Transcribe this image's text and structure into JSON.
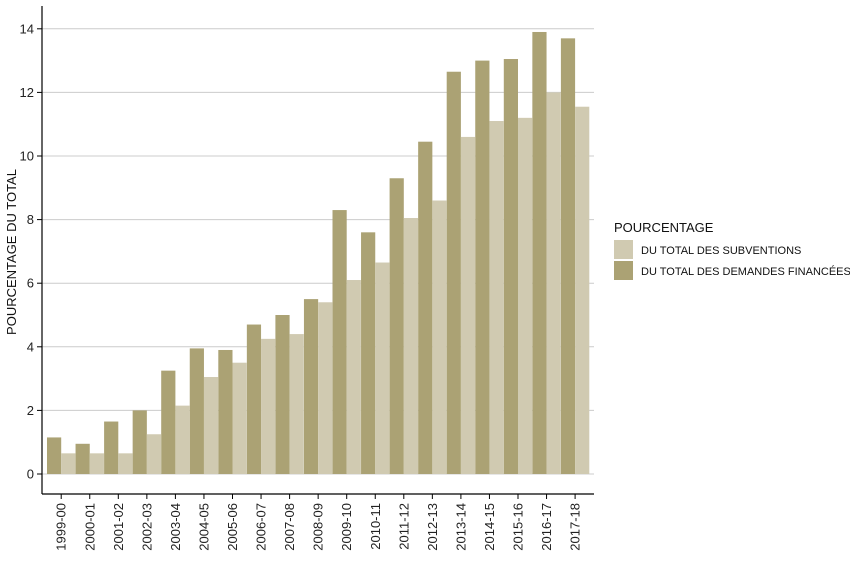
{
  "chart_data": {
    "type": "bar",
    "ylabel": "POURCENTAGE DU TOTAL",
    "xlabel": "",
    "ylim": [
      0,
      14.5
    ],
    "yticks": [
      0,
      2,
      4,
      6,
      8,
      10,
      12,
      14
    ],
    "grid": "horizontal",
    "legend": {
      "title": "POURCENTAGE",
      "placement": "right"
    },
    "categories": [
      "1999-00",
      "2000-01",
      "2001-02",
      "2002-03",
      "2003-04",
      "2004-05",
      "2005-06",
      "2006-07",
      "2007-08",
      "2008-09",
      "2009-10",
      "2010-11",
      "2011-12",
      "2012-13",
      "2013-14",
      "2014-15",
      "2015-16",
      "2016-17",
      "2017-18"
    ],
    "series": [
      {
        "name": "DU TOTAL DES DEMANDES FINANCÉES",
        "color": "#aba274",
        "values": [
          1.15,
          0.95,
          1.65,
          2.0,
          3.25,
          3.95,
          3.9,
          4.7,
          5.0,
          5.5,
          8.3,
          7.6,
          9.3,
          10.45,
          12.65,
          13.0,
          13.05,
          13.9,
          13.7
        ]
      },
      {
        "name": "DU TOTAL DES SUBVENTIONS",
        "color": "#d0cab1",
        "values": [
          0.65,
          0.65,
          0.65,
          1.25,
          2.15,
          3.05,
          3.5,
          4.25,
          4.4,
          5.4,
          6.1,
          6.65,
          8.05,
          8.6,
          10.6,
          11.1,
          11.2,
          12.0,
          11.55
        ]
      }
    ]
  }
}
